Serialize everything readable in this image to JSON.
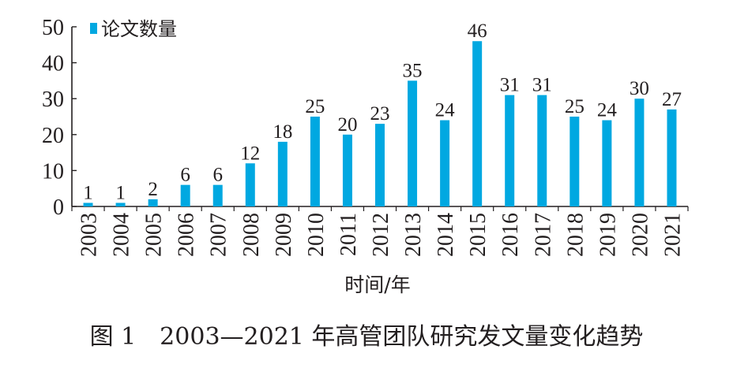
{
  "caption": "图 1　2003—2021 年高管团队研究发文量变化趋势",
  "colors": {
    "bar": "#00a8e1",
    "axis": "#231f20"
  },
  "chart_data": {
    "type": "bar",
    "categories": [
      "2003",
      "2004",
      "2005",
      "2006",
      "2007",
      "2008",
      "2009",
      "2010",
      "2011",
      "2012",
      "2013",
      "2014",
      "2015",
      "2016",
      "2017",
      "2018",
      "2019",
      "2020",
      "2021"
    ],
    "series": [
      {
        "name": "论文数量",
        "values": [
          1,
          1,
          2,
          6,
          6,
          12,
          18,
          25,
          20,
          23,
          35,
          24,
          46,
          31,
          31,
          25,
          24,
          30,
          27
        ]
      }
    ],
    "xlabel": "时间/年",
    "ylabel": "",
    "ylim": [
      0,
      50
    ],
    "yticks": [
      0,
      10,
      20,
      30,
      40,
      50
    ],
    "legend": "top-left",
    "grid": false,
    "data_labels": true
  }
}
